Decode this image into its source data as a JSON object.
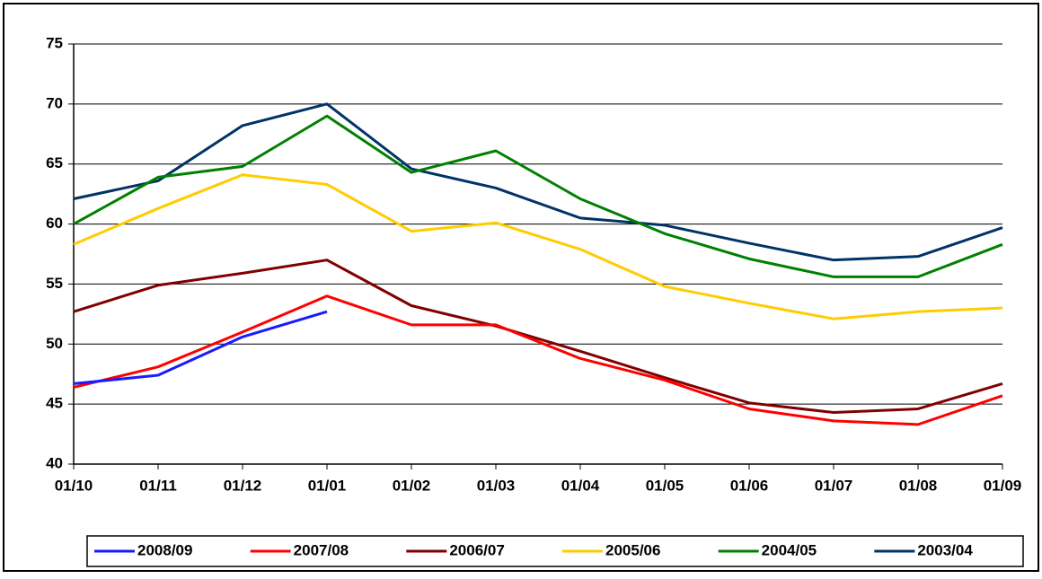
{
  "chart_data": {
    "type": "line",
    "categories": [
      "01/10",
      "01/11",
      "01/12",
      "01/01",
      "01/02",
      "01/03",
      "01/04",
      "01/05",
      "01/06",
      "01/07",
      "01/08",
      "01/09"
    ],
    "series": [
      {
        "name": "2008/09",
        "color": "#1a1aff",
        "values": [
          46.7,
          47.4,
          50.6,
          52.7,
          null,
          null,
          null,
          null,
          null,
          null,
          null,
          null
        ]
      },
      {
        "name": "2007/08",
        "color": "#ff0000",
        "values": [
          46.4,
          48.1,
          51.0,
          54.0,
          51.6,
          51.6,
          48.8,
          47.0,
          44.6,
          43.6,
          43.3,
          45.7
        ]
      },
      {
        "name": "2006/07",
        "color": "#800000",
        "values": [
          52.7,
          54.9,
          55.9,
          57.0,
          53.2,
          51.5,
          49.4,
          47.2,
          45.1,
          44.3,
          44.6,
          46.7
        ]
      },
      {
        "name": "2005/06",
        "color": "#ffcc00",
        "values": [
          58.3,
          61.3,
          64.1,
          63.3,
          59.4,
          60.1,
          57.9,
          54.8,
          53.4,
          52.1,
          52.7,
          53.0
        ]
      },
      {
        "name": "2004/05",
        "color": "#008000",
        "values": [
          60.0,
          63.9,
          64.8,
          69.0,
          64.3,
          66.1,
          62.1,
          59.2,
          57.1,
          55.6,
          55.6,
          58.3
        ]
      },
      {
        "name": "2003/04",
        "color": "#003366",
        "values": [
          62.1,
          63.6,
          68.2,
          70.0,
          64.6,
          63.0,
          60.5,
          59.9,
          58.4,
          57.0,
          57.3,
          59.7
        ]
      }
    ],
    "ylim": [
      40,
      75
    ],
    "yticks": [
      40,
      45,
      50,
      55,
      60,
      65,
      70,
      75
    ],
    "grid": true,
    "legend": "bottom"
  }
}
